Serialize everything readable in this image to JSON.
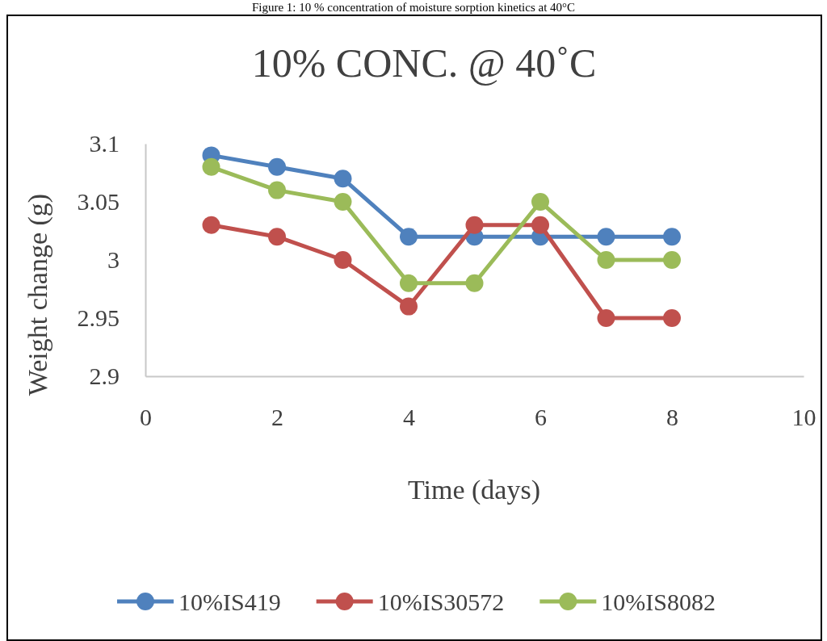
{
  "chart_data": {
    "type": "line",
    "title": "10% CONC. @ 40˚C",
    "xlabel": "Time  (days)",
    "ylabel": "Weight  change  (g)",
    "annotations": [
      "Figure 1: 10 % concentration of moisture sorption kinetics at 40°C"
    ],
    "x": [
      1,
      2,
      3,
      4,
      5,
      6,
      7,
      8
    ],
    "series": [
      {
        "name": "10%IS419",
        "color": "#4f81bd",
        "values": [
          3.09,
          3.08,
          3.07,
          3.02,
          3.02,
          3.02,
          3.02,
          3.02
        ]
      },
      {
        "name": "10%IS30572",
        "color": "#c0504d",
        "values": [
          3.03,
          3.02,
          3.0,
          2.96,
          3.03,
          3.03,
          2.95,
          2.95
        ]
      },
      {
        "name": "10%IS8082",
        "color": "#9bbb59",
        "values": [
          3.08,
          3.06,
          3.05,
          2.98,
          2.98,
          3.05,
          3.0,
          3.0
        ]
      }
    ],
    "xlim": [
      0,
      10
    ],
    "xticks": [
      0,
      2,
      4,
      6,
      8,
      10
    ],
    "ylim": [
      2.9,
      3.1
    ],
    "yticks": [
      2.9,
      2.95,
      3,
      3.05,
      3.1
    ],
    "grid": false,
    "legend": "bottom",
    "marker": "circle",
    "line_style": "solid"
  }
}
